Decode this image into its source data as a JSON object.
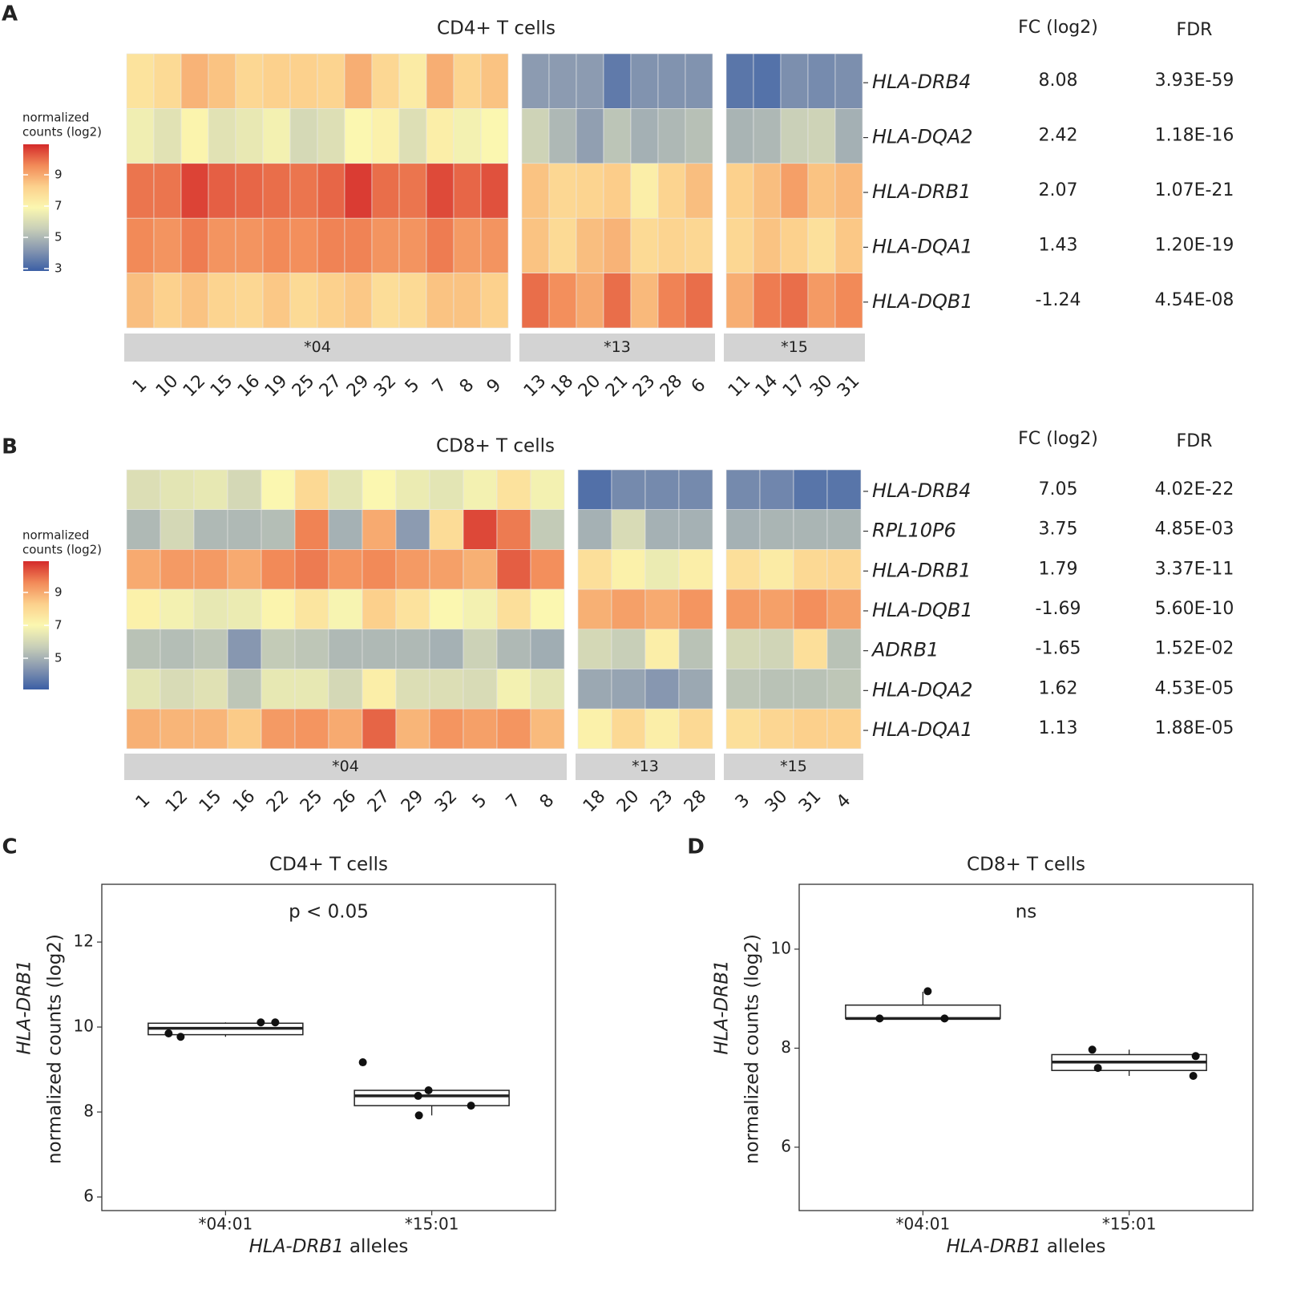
{
  "chart_data": [
    {
      "type": "heatmap",
      "panel": "A",
      "title": "CD4+ T cells",
      "legend_title": [
        "normalized",
        "counts (log2)"
      ],
      "clim": [
        2.85,
        10.95
      ],
      "cticks": [
        3,
        5,
        7,
        9
      ],
      "colormap": [
        "#3b5fa5",
        "#8797b0",
        "#c8cfb8",
        "#fbf7b0",
        "#fcd08c",
        "#f28a58",
        "#d42a2a"
      ],
      "rows": [
        "HLA-DRB4",
        "HLA-DQA2",
        "HLA-DRB1",
        "HLA-DQA1",
        "HLA-DQB1"
      ],
      "groups": [
        {
          "name": "*04",
          "columns": [
            "1",
            "10",
            "12",
            "15",
            "16",
            "19",
            "25",
            "27",
            "29",
            "32",
            "5",
            "7",
            "8",
            "9"
          ],
          "values": [
            [
              7.6,
              7.9,
              8.8,
              8.5,
              8.0,
              8.2,
              8.2,
              8.1,
              8.9,
              8.0,
              7.3,
              8.9,
              8.1,
              8.5
            ],
            [
              6.6,
              6.2,
              7.0,
              6.2,
              6.4,
              6.7,
              5.9,
              6.1,
              6.9,
              7.1,
              6.1,
              7.2,
              6.7,
              6.9
            ],
            [
              9.9,
              9.9,
              10.6,
              10.2,
              10.1,
              10.0,
              9.9,
              10.1,
              10.7,
              10.0,
              9.9,
              10.5,
              10.1,
              10.4
            ],
            [
              9.6,
              9.4,
              9.8,
              9.4,
              9.4,
              9.6,
              9.5,
              9.7,
              9.7,
              9.4,
              9.4,
              9.8,
              9.3,
              9.4
            ],
            [
              8.6,
              8.2,
              8.5,
              8.1,
              8.0,
              8.4,
              7.9,
              8.2,
              8.4,
              7.8,
              7.9,
              8.5,
              8.5,
              8.2
            ]
          ]
        },
        {
          "name": "*13",
          "columns": [
            "13",
            "18",
            "20",
            "21",
            "23",
            "28",
            "6"
          ],
          "values": [
            [
              4.3,
              4.3,
              4.3,
              3.5,
              4.1,
              4.1,
              4.1
            ],
            [
              5.7,
              5.0,
              4.4,
              5.3,
              4.8,
              5.0,
              5.2
            ],
            [
              8.5,
              8.0,
              8.1,
              8.3,
              7.2,
              8.1,
              8.6
            ],
            [
              8.5,
              7.9,
              8.6,
              8.8,
              7.9,
              8.1,
              8.0
            ],
            [
              10.0,
              9.5,
              9.0,
              10.0,
              8.7,
              9.7,
              10.0
            ]
          ]
        },
        {
          "name": "*15",
          "columns": [
            "11",
            "14",
            "17",
            "30",
            "31"
          ],
          "values": [
            [
              3.4,
              3.3,
              4.0,
              3.9,
              4.0
            ],
            [
              4.9,
              5.0,
              5.6,
              5.7,
              4.8
            ],
            [
              8.2,
              8.6,
              9.2,
              8.5,
              8.7
            ],
            [
              8.0,
              8.5,
              8.2,
              7.7,
              8.4
            ],
            [
              8.9,
              9.8,
              10.0,
              9.3,
              9.6
            ]
          ]
        }
      ],
      "fc_header": "FC (log2)",
      "fc": [
        8.08,
        2.42,
        2.07,
        1.43,
        -1.24
      ],
      "fdr_header": "FDR",
      "fdr": [
        "3.93E-59",
        "1.18E-16",
        "1.07E-21",
        "1.20E-19",
        "4.54E-08"
      ]
    },
    {
      "type": "heatmap",
      "panel": "B",
      "title": "CD8+ T cells",
      "legend_title": [
        "normalized",
        "counts (log2)"
      ],
      "clim": [
        3.1,
        10.9
      ],
      "cticks": [
        5,
        7,
        9
      ],
      "colormap": [
        "#3b5fa5",
        "#8797b0",
        "#c8cfb8",
        "#fbf7b0",
        "#fcd08c",
        "#f28a58",
        "#d42a2a"
      ],
      "rows": [
        "HLA-DRB4",
        "RPL10P6",
        "HLA-DRB1",
        "HLA-DQB1",
        "ADRB1",
        "HLA-DQA2",
        "HLA-DQA1"
      ],
      "groups": [
        {
          "name": "*04",
          "columns": [
            "1",
            "12",
            "15",
            "16",
            "22",
            "25",
            "26",
            "27",
            "29",
            "32",
            "5",
            "7",
            "8"
          ],
          "values": [
            [
              6.2,
              6.4,
              6.5,
              6.0,
              7.0,
              8.0,
              6.4,
              7.0,
              6.6,
              6.4,
              6.8,
              7.7,
              6.8
            ],
            [
              5.2,
              6.0,
              5.2,
              5.2,
              5.3,
              9.7,
              5.0,
              9.0,
              4.5,
              7.9,
              10.5,
              9.8,
              5.6
            ],
            [
              9.0,
              9.3,
              9.3,
              9.0,
              9.6,
              9.8,
              9.4,
              9.6,
              9.3,
              9.2,
              8.9,
              10.2,
              9.5
            ],
            [
              7.2,
              6.8,
              6.5,
              6.6,
              7.1,
              7.6,
              6.9,
              8.3,
              7.7,
              7.0,
              6.8,
              7.8,
              7.0
            ],
            [
              5.4,
              5.3,
              5.5,
              4.4,
              5.6,
              5.5,
              5.2,
              5.2,
              5.2,
              5.0,
              5.8,
              5.2,
              4.9
            ],
            [
              6.4,
              6.1,
              6.3,
              5.5,
              6.5,
              6.5,
              6.0,
              7.3,
              6.2,
              6.2,
              6.1,
              6.8,
              6.4
            ],
            [
              8.9,
              8.8,
              8.8,
              8.4,
              9.3,
              9.4,
              9.0,
              10.1,
              8.8,
              9.4,
              9.2,
              9.4,
              8.7
            ]
          ]
        },
        {
          "name": "*13",
          "columns": [
            "18",
            "20",
            "23",
            "28"
          ],
          "values": [
            [
              3.5,
              4.1,
              4.1,
              4.1
            ],
            [
              5.0,
              6.1,
              5.0,
              5.0
            ],
            [
              7.8,
              7.2,
              6.6,
              7.3
            ],
            [
              8.9,
              9.2,
              9.0,
              9.4
            ],
            [
              6.0,
              5.7,
              7.3,
              5.4
            ],
            [
              4.8,
              4.7,
              4.4,
              4.8
            ],
            [
              7.2,
              8.0,
              7.3,
              8.0
            ]
          ]
        },
        {
          "name": "*15",
          "columns": [
            "3",
            "30",
            "31",
            "4"
          ],
          "values": [
            [
              4.1,
              4.0,
              3.6,
              3.6
            ],
            [
              5.0,
              5.1,
              5.1,
              5.1
            ],
            [
              7.8,
              7.4,
              8.0,
              8.1
            ],
            [
              9.3,
              9.2,
              9.5,
              9.2
            ],
            [
              6.0,
              5.9,
              7.8,
              5.4
            ],
            [
              5.5,
              5.4,
              5.4,
              5.5
            ],
            [
              7.8,
              8.1,
              8.3,
              8.3
            ]
          ]
        }
      ],
      "fc_header": "FC (log2)",
      "fc": [
        7.05,
        3.75,
        1.79,
        -1.69,
        -1.65,
        1.62,
        1.13
      ],
      "fdr_header": "FDR",
      "fdr": [
        "4.02E-22",
        "4.85E-03",
        "3.37E-11",
        "5.60E-10",
        "1.52E-02",
        "4.53E-05",
        "1.88E-05"
      ]
    },
    {
      "type": "box",
      "panel": "C",
      "title": "CD4+ T cells",
      "annotation": "p < 0.05",
      "ylabel": {
        "gene": "HLA-DRB1",
        "text": "normalized counts (log2)"
      },
      "xlabel": {
        "gene": "HLA-DRB1",
        "text": "alleles"
      },
      "categories": [
        "*04:01",
        "*15:01"
      ],
      "ylim": [
        5.68,
        13.36
      ],
      "yticks": [
        6,
        8,
        10,
        12
      ],
      "boxes": [
        {
          "whisker_low": 9.77,
          "q1": 9.82,
          "median": 9.97,
          "q3": 10.09,
          "whisker_high": 10.11,
          "points": [
            9.85,
            9.77,
            10.11,
            10.11
          ]
        },
        {
          "whisker_low": 7.92,
          "q1": 8.15,
          "median": 8.38,
          "q3": 8.51,
          "whisker_high": 8.51,
          "points": [
            9.17,
            8.38,
            8.51,
            7.92,
            8.15
          ]
        }
      ]
    },
    {
      "type": "box",
      "panel": "D",
      "title": "CD8+ T cells",
      "annotation": "ns",
      "ylabel": {
        "gene": "HLA-DRB1",
        "text": "normalized counts (log2)"
      },
      "xlabel": {
        "gene": "HLA-DRB1",
        "text": "alleles"
      },
      "categories": [
        "*04:01",
        "*15:01"
      ],
      "ylim": [
        4.72,
        11.31
      ],
      "yticks": [
        6,
        8,
        10
      ],
      "boxes": [
        {
          "whisker_low": 8.6,
          "q1": 8.6,
          "median": 8.6,
          "q3": 8.87,
          "whisker_high": 9.14,
          "points": [
            8.6,
            9.15,
            8.6
          ]
        },
        {
          "whisker_low": 7.44,
          "q1": 7.55,
          "median": 7.72,
          "q3": 7.87,
          "whisker_high": 7.97,
          "points": [
            7.97,
            7.6,
            7.84,
            7.44
          ]
        }
      ]
    }
  ]
}
